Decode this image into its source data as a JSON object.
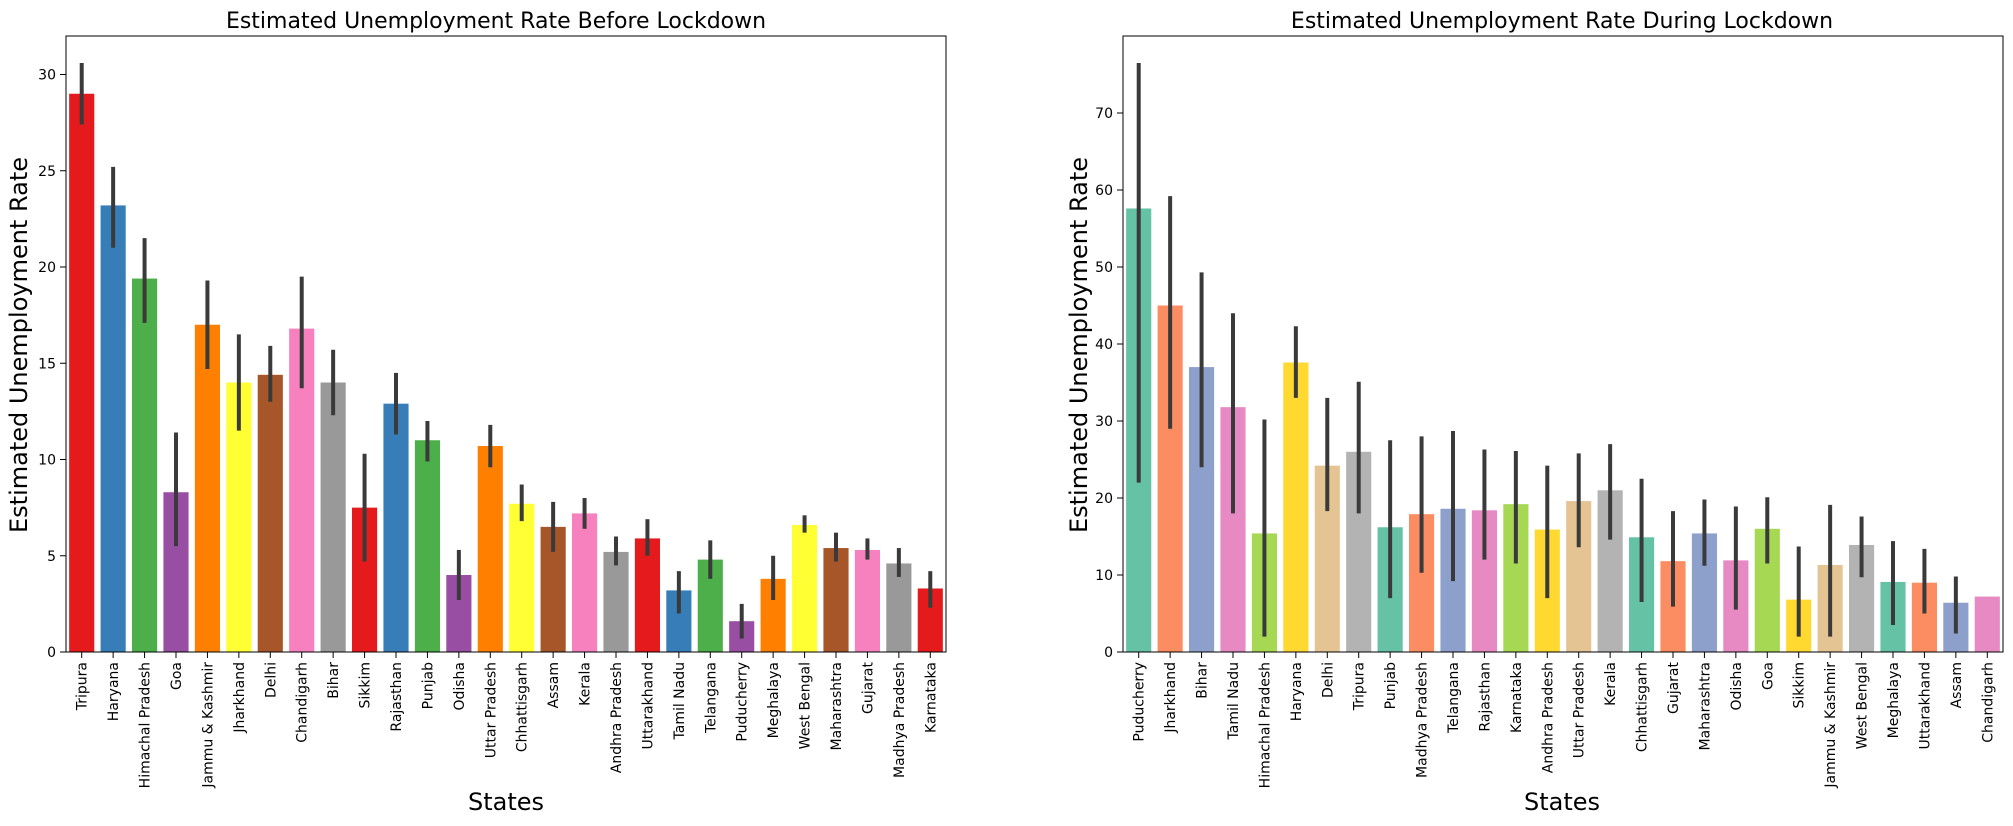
{
  "chart_data": [
    {
      "type": "bar",
      "title": "Estimated Unemployment Rate Before Lockdown",
      "xlabel": "States",
      "ylabel": "Estimated Unemployment Rate",
      "ylim": [
        0,
        32
      ],
      "yticks": [
        0,
        5,
        10,
        15,
        20,
        25,
        30
      ],
      "ytick_labels": [
        "0",
        "5",
        "10",
        "15",
        "20",
        "25",
        "30"
      ],
      "grid": false,
      "error_bars": true,
      "categories": [
        "Tripura",
        "Haryana",
        "Himachal Pradesh",
        "Goa",
        "Jammu & Kashmir",
        "Jharkhand",
        "Delhi",
        "Chandigarh",
        "Bihar",
        "Sikkim",
        "Rajasthan",
        "Punjab",
        "Odisha",
        "Uttar Pradesh",
        "Chhattisgarh",
        "Assam",
        "Kerala",
        "Andhra Pradesh",
        "Uttarakhand",
        "Tamil Nadu",
        "Telangana",
        "Puducherry",
        "Meghalaya",
        "West Bengal",
        "Maharashtra",
        "Gujarat",
        "Madhya Pradesh",
        "Karnataka"
      ],
      "values": [
        29.0,
        23.2,
        19.4,
        8.3,
        17.0,
        14.0,
        14.4,
        16.8,
        14.0,
        7.5,
        12.9,
        11.0,
        4.0,
        10.7,
        7.7,
        6.5,
        7.2,
        5.2,
        5.9,
        3.2,
        4.8,
        1.6,
        3.8,
        6.6,
        5.4,
        5.3,
        4.6,
        3.3
      ],
      "err_low": [
        27.4,
        21.0,
        17.1,
        5.5,
        14.7,
        11.5,
        13.0,
        13.7,
        12.3,
        4.7,
        11.3,
        9.9,
        2.7,
        9.6,
        6.8,
        5.2,
        6.4,
        4.5,
        5.0,
        2.0,
        3.8,
        0.7,
        2.7,
        6.2,
        4.7,
        4.8,
        3.9,
        2.3
      ],
      "err_high": [
        30.6,
        25.2,
        21.5,
        11.4,
        19.3,
        16.5,
        15.9,
        19.5,
        15.7,
        10.3,
        14.5,
        12.0,
        5.3,
        11.8,
        8.7,
        7.8,
        8.0,
        6.0,
        6.9,
        4.2,
        5.8,
        2.5,
        5.0,
        7.1,
        6.2,
        5.9,
        5.4,
        4.2
      ],
      "colors": [
        "#e41a1c",
        "#377eb8",
        "#4daf4a",
        "#984ea3",
        "#ff7f00",
        "#ffff33",
        "#a65628",
        "#f781bf",
        "#999999"
      ]
    },
    {
      "type": "bar",
      "title": "Estimated Unemployment Rate During Lockdown",
      "xlabel": "States",
      "ylabel": "Estimated Unemployment Rate",
      "ylim": [
        0,
        80
      ],
      "yticks": [
        0,
        10,
        20,
        30,
        40,
        50,
        60,
        70
      ],
      "ytick_labels": [
        "0",
        "10",
        "20",
        "30",
        "40",
        "50",
        "60",
        "70"
      ],
      "grid": false,
      "error_bars": true,
      "categories": [
        "Puducherry",
        "Jharkhand",
        "Bihar",
        "Tamil Nadu",
        "Himachal Pradesh",
        "Haryana",
        "Delhi",
        "Tripura",
        "Punjab",
        "Madhya Pradesh",
        "Telangana",
        "Rajasthan",
        "Karnataka",
        "Andhra Pradesh",
        "Uttar Pradesh",
        "Kerala",
        "Chhattisgarh",
        "Gujarat",
        "Maharashtra",
        "Odisha",
        "Goa",
        "Sikkim",
        "Jammu & Kashmir",
        "West Bengal",
        "Meghalaya",
        "Uttarakhand",
        "Assam",
        "Chandigarh"
      ],
      "values": [
        57.6,
        45.0,
        37.0,
        31.8,
        15.4,
        37.6,
        24.2,
        26.0,
        16.2,
        17.9,
        18.6,
        18.4,
        19.2,
        15.9,
        19.6,
        21.0,
        14.9,
        11.8,
        15.4,
        11.9,
        16.0,
        6.8,
        11.3,
        13.9,
        9.1,
        9.0,
        6.4,
        7.2
      ],
      "err_low": [
        22.0,
        29.0,
        24.0,
        18.0,
        2.0,
        33.0,
        18.3,
        18.0,
        7.0,
        10.3,
        9.2,
        12.0,
        11.5,
        7.0,
        13.6,
        14.6,
        6.5,
        5.9,
        11.2,
        5.5,
        11.5,
        2.0,
        2.0,
        9.7,
        3.5,
        5.0,
        2.4,
        7.2
      ],
      "err_high": [
        76.5,
        59.2,
        49.3,
        44.0,
        30.2,
        42.3,
        33.0,
        35.1,
        27.5,
        28.0,
        28.7,
        26.3,
        26.1,
        24.2,
        25.8,
        27.0,
        22.5,
        18.3,
        19.8,
        18.9,
        20.1,
        13.7,
        19.1,
        17.6,
        14.4,
        13.4,
        9.8,
        7.2
      ],
      "colors": [
        "#66c2a5",
        "#fc8d62",
        "#8da0cb",
        "#e78ac3",
        "#a6d854",
        "#ffd92f",
        "#e5c494",
        "#b3b3b3"
      ]
    }
  ]
}
